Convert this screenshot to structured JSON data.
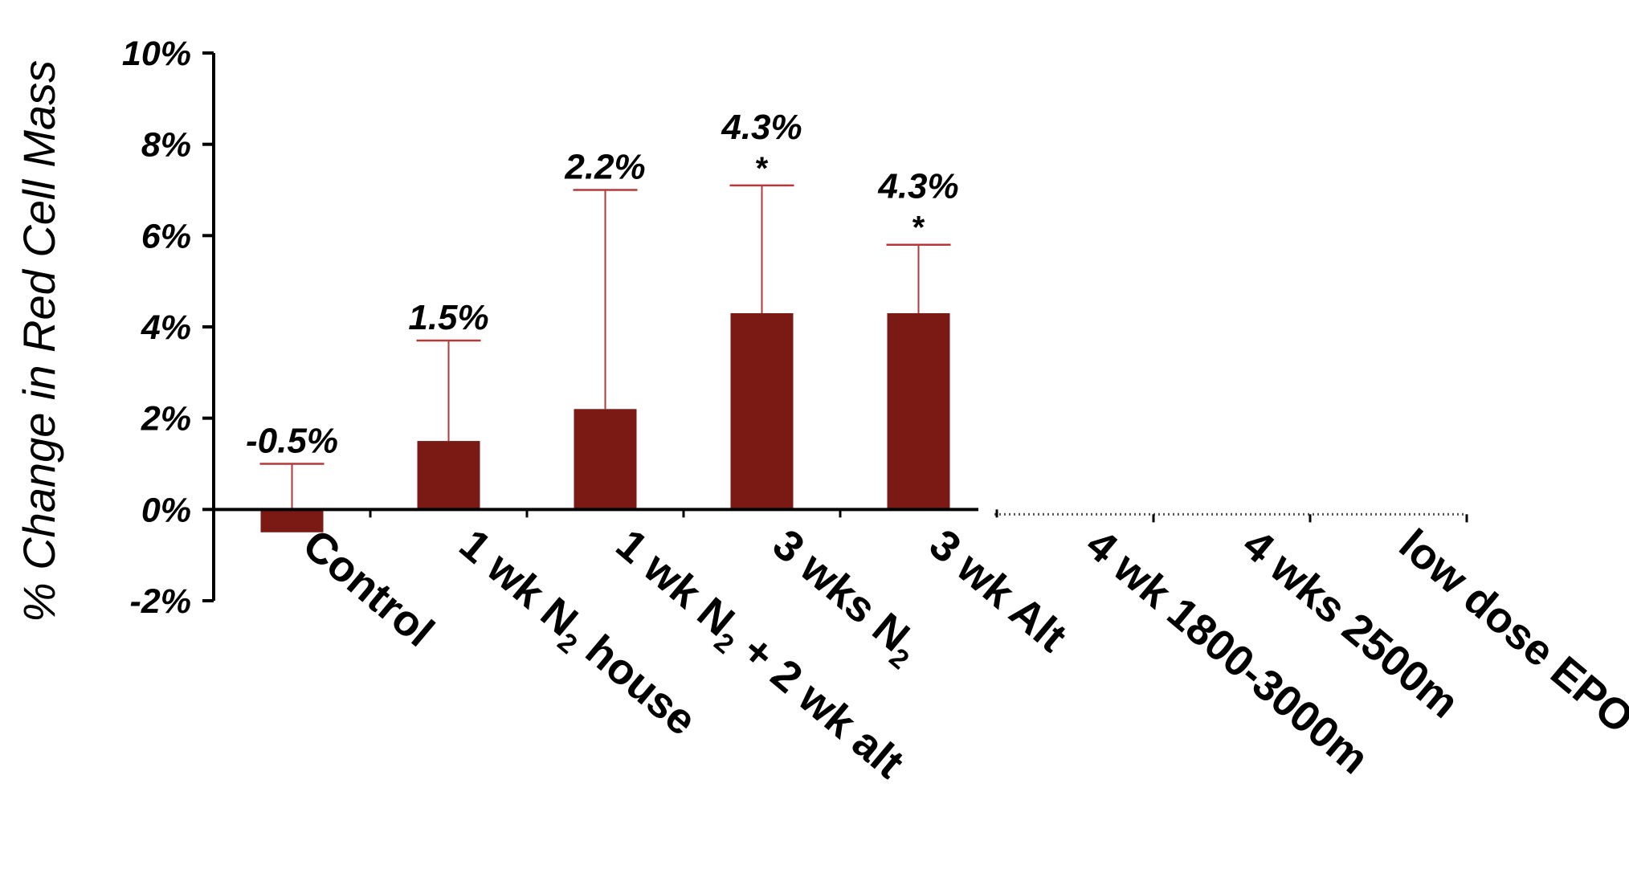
{
  "chart_data": {
    "type": "bar",
    "ylabel": "% Change in Red Cell Mass",
    "ylim": [
      -2,
      10
    ],
    "yticks": [
      "10%",
      "8%",
      "6%",
      "4%",
      "2%",
      "0%",
      "-2%"
    ],
    "ytick_values": [
      10,
      8,
      6,
      4,
      2,
      0,
      -2
    ],
    "bar_color": "#7b1a14",
    "error_color": "#b33a3a",
    "categories": [
      {
        "pre": "Control",
        "sub": "",
        "post": ""
      },
      {
        "pre": "1 wk N",
        "sub": "2",
        "post": " house"
      },
      {
        "pre": "1 wk N",
        "sub": "2",
        "post": " + 2 wk alt"
      },
      {
        "pre": "3 wks N",
        "sub": "2",
        "post": ""
      },
      {
        "pre": "3 wk Alt",
        "sub": "",
        "post": ""
      },
      {
        "pre": "4 wk 1800-3000m",
        "sub": "",
        "post": ""
      },
      {
        "pre": "4 wks 2500m",
        "sub": "",
        "post": ""
      },
      {
        "pre": "low dose EPO",
        "sub": "",
        "post": ""
      }
    ],
    "values": [
      -0.5,
      1.5,
      2.2,
      4.3,
      4.3,
      null,
      null,
      null
    ],
    "error_upper": [
      1.0,
      3.7,
      7.0,
      7.1,
      5.8,
      null,
      null,
      null
    ],
    "data_labels": [
      "-0.5%",
      "1.5%",
      "2.2%",
      "4.3%",
      "4.3%",
      "",
      "",
      ""
    ],
    "significance": [
      "",
      "",
      "",
      "*",
      "*",
      "",
      "",
      ""
    ]
  }
}
